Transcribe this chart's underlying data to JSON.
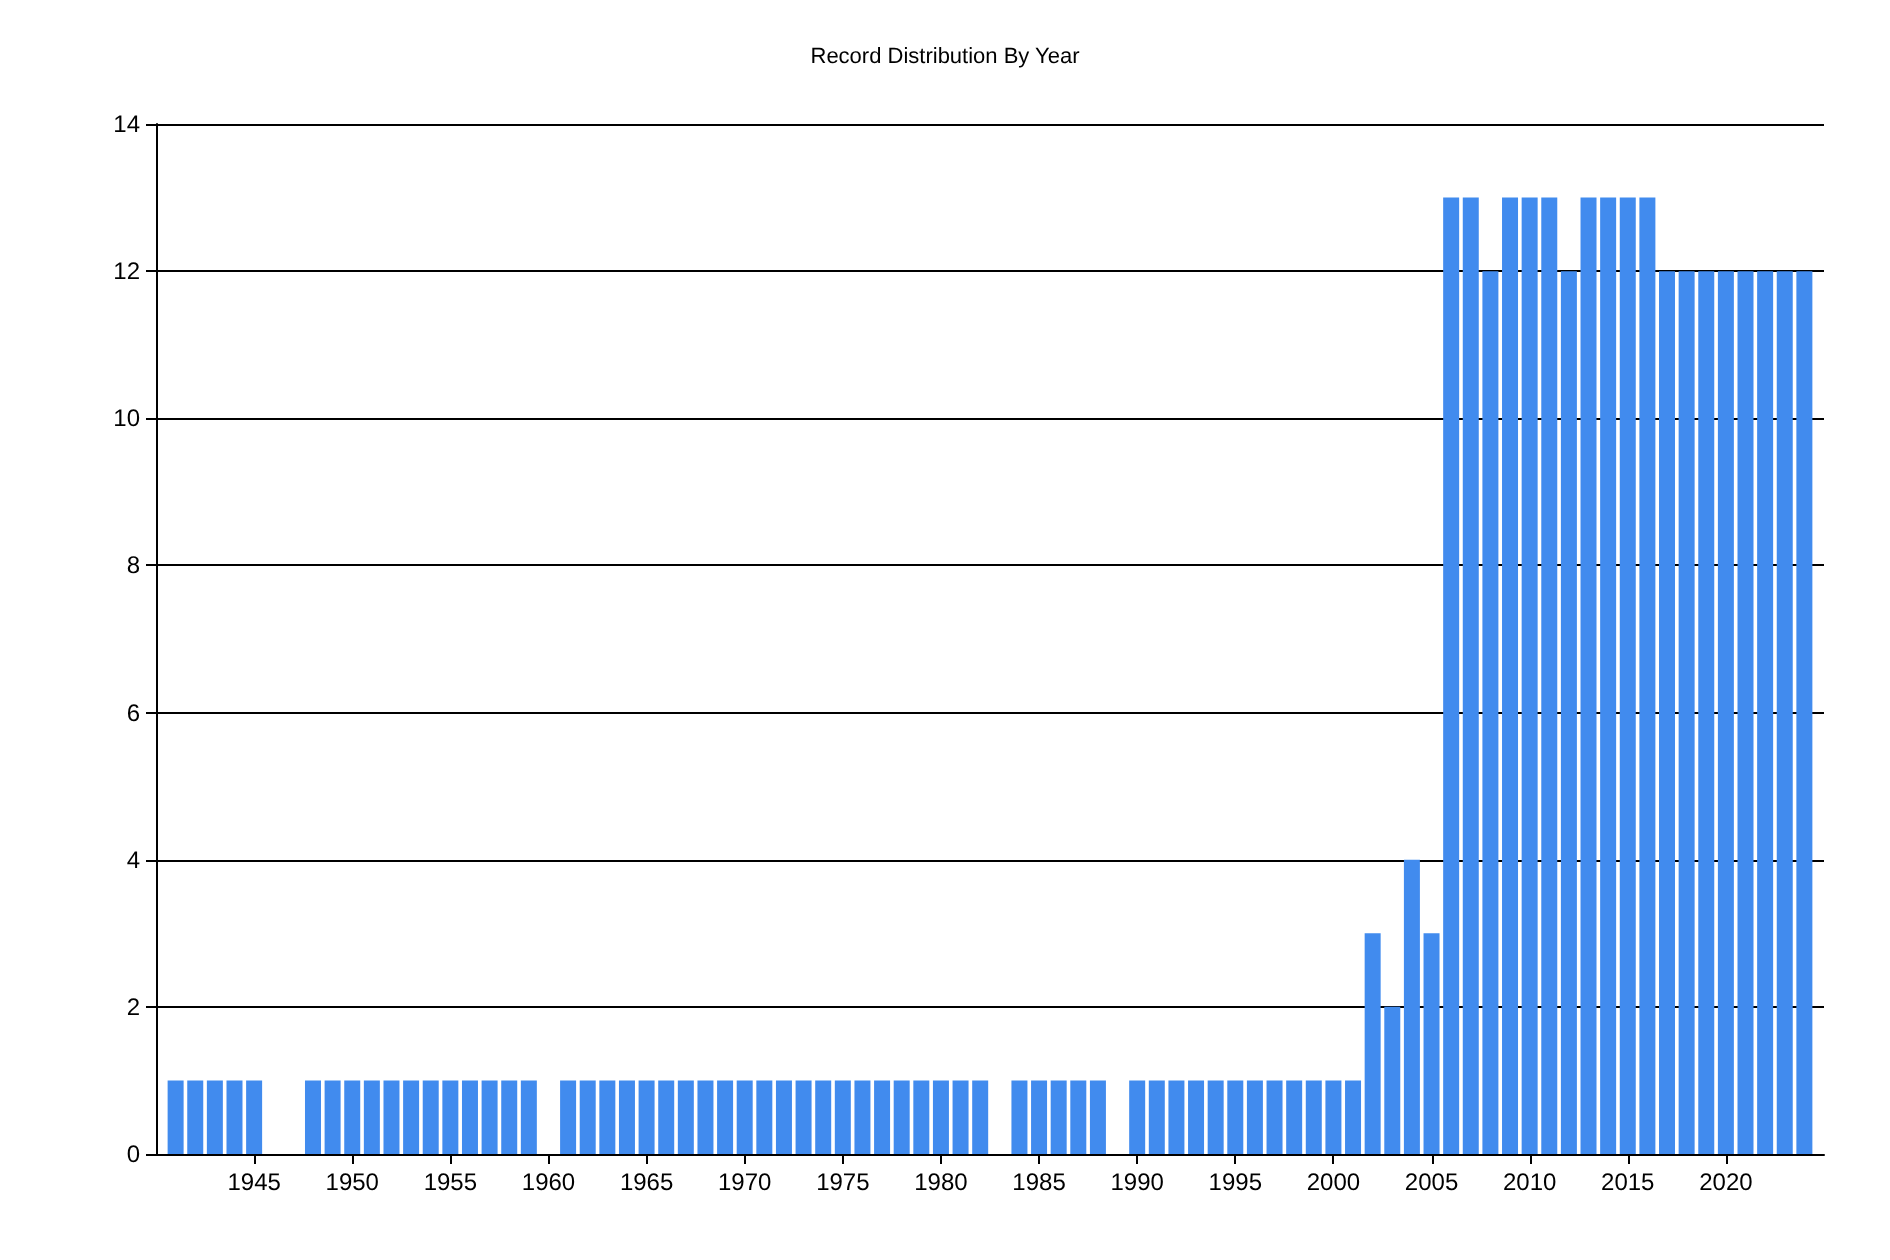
{
  "chart_data": {
    "type": "bar",
    "title": "Record Distribution By Year",
    "x": [
      1941,
      1942,
      1943,
      1944,
      1945,
      1948,
      1949,
      1950,
      1951,
      1952,
      1953,
      1954,
      1955,
      1956,
      1957,
      1958,
      1959,
      1961,
      1962,
      1963,
      1964,
      1965,
      1966,
      1967,
      1968,
      1969,
      1970,
      1971,
      1972,
      1973,
      1974,
      1975,
      1976,
      1977,
      1978,
      1979,
      1980,
      1981,
      1982,
      1984,
      1985,
      1986,
      1987,
      1988,
      1990,
      1991,
      1992,
      1993,
      1994,
      1995,
      1996,
      1997,
      1998,
      1999,
      2000,
      2001,
      2002,
      2003,
      2004,
      2005,
      2006,
      2007,
      2008,
      2009,
      2010,
      2011,
      2012,
      2013,
      2014,
      2015,
      2016,
      2017,
      2018,
      2019,
      2020,
      2021,
      2022,
      2023,
      2024
    ],
    "values": [
      1,
      1,
      1,
      1,
      1,
      1,
      1,
      1,
      1,
      1,
      1,
      1,
      1,
      1,
      1,
      1,
      1,
      1,
      1,
      1,
      1,
      1,
      1,
      1,
      1,
      1,
      1,
      1,
      1,
      1,
      1,
      1,
      1,
      1,
      1,
      1,
      1,
      1,
      1,
      1,
      1,
      1,
      1,
      1,
      1,
      1,
      1,
      1,
      1,
      1,
      1,
      1,
      1,
      1,
      1,
      1,
      3,
      2,
      4,
      3,
      13,
      13,
      12,
      13,
      13,
      13,
      12,
      13,
      13,
      13,
      13,
      12,
      12,
      12,
      12,
      12,
      12,
      12,
      12
    ],
    "color": "#418bee",
    "xlim": [
      1940,
      2025
    ],
    "xticks": [
      1945,
      1950,
      1955,
      1960,
      1965,
      1970,
      1975,
      1980,
      1985,
      1990,
      1995,
      2000,
      2005,
      2010,
      2015,
      2020
    ],
    "ylim": [
      0,
      14
    ],
    "yticks": [
      0,
      2,
      4,
      6,
      8,
      10,
      12,
      14
    ],
    "grid": "y"
  }
}
